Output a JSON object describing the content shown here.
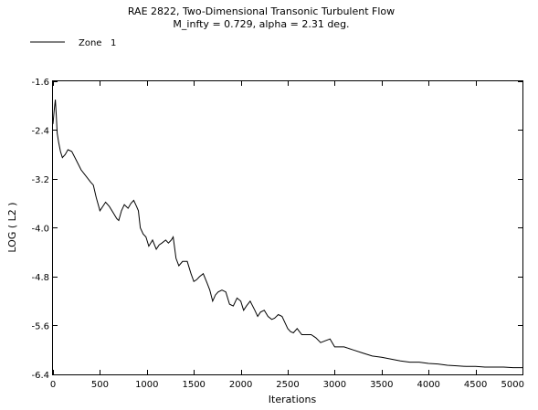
{
  "chart_data": {
    "type": "line",
    "title": "RAE 2822, Two-Dimensional Transonic Turbulent Flow",
    "subtitle": "M_infty = 0.729, alpha = 2.31 deg.",
    "xlabel": "Iterations",
    "ylabel": "LOG ( L2 )",
    "xlim": [
      0,
      5000
    ],
    "ylim": [
      -6.4,
      -1.6
    ],
    "x_ticks": [
      0,
      500,
      1000,
      1500,
      2000,
      2500,
      3000,
      3500,
      4000,
      4500,
      5000
    ],
    "x_tick_labels": [
      "0",
      "500",
      "1000",
      "1500",
      "2000",
      "2500",
      "3000",
      "3500",
      "4000",
      "4500",
      "5000"
    ],
    "y_ticks": [
      -1.6,
      -2.4,
      -3.2,
      -4.0,
      -4.8,
      -5.6,
      -6.4
    ],
    "y_tick_labels": [
      "-1.6",
      "-2.4",
      "-3.2",
      "-4.0",
      "-4.8",
      "-5.6",
      "-6.4"
    ],
    "grid": false,
    "legend_position": "top-left",
    "series": [
      {
        "name": "Zone   1",
        "color": "#000000",
        "x": [
          0,
          15,
          25,
          35,
          45,
          60,
          80,
          100,
          130,
          160,
          200,
          250,
          300,
          350,
          400,
          430,
          460,
          500,
          530,
          560,
          600,
          640,
          680,
          700,
          730,
          760,
          800,
          830,
          860,
          890,
          910,
          930,
          960,
          990,
          1020,
          1060,
          1100,
          1130,
          1160,
          1200,
          1230,
          1260,
          1280,
          1310,
          1340,
          1380,
          1430,
          1470,
          1500,
          1530,
          1560,
          1600,
          1640,
          1670,
          1700,
          1730,
          1760,
          1800,
          1840,
          1880,
          1920,
          1960,
          2000,
          2030,
          2060,
          2100,
          2150,
          2180,
          2210,
          2250,
          2290,
          2330,
          2360,
          2400,
          2440,
          2470,
          2500,
          2530,
          2560,
          2600,
          2650,
          2700,
          2750,
          2800,
          2850,
          2900,
          2950,
          3000,
          3100,
          3200,
          3300,
          3400,
          3500,
          3600,
          3700,
          3800,
          3900,
          4000,
          4100,
          4200,
          4300,
          4400,
          4500,
          4600,
          4700,
          4800,
          4900,
          5000
        ],
        "y": [
          -2.3,
          -2.05,
          -1.9,
          -2.15,
          -2.45,
          -2.6,
          -2.75,
          -2.85,
          -2.8,
          -2.72,
          -2.75,
          -2.9,
          -3.05,
          -3.15,
          -3.25,
          -3.3,
          -3.5,
          -3.72,
          -3.65,
          -3.58,
          -3.65,
          -3.75,
          -3.85,
          -3.88,
          -3.72,
          -3.62,
          -3.68,
          -3.6,
          -3.55,
          -3.65,
          -3.72,
          -4.0,
          -4.1,
          -4.15,
          -4.3,
          -4.2,
          -4.35,
          -4.28,
          -4.25,
          -4.2,
          -4.25,
          -4.2,
          -4.15,
          -4.5,
          -4.62,
          -4.55,
          -4.55,
          -4.75,
          -4.88,
          -4.85,
          -4.8,
          -4.75,
          -4.9,
          -5.02,
          -5.2,
          -5.1,
          -5.05,
          -5.02,
          -5.05,
          -5.25,
          -5.28,
          -5.15,
          -5.2,
          -5.35,
          -5.28,
          -5.2,
          -5.35,
          -5.45,
          -5.38,
          -5.35,
          -5.45,
          -5.5,
          -5.48,
          -5.42,
          -5.45,
          -5.55,
          -5.65,
          -5.7,
          -5.72,
          -5.65,
          -5.75,
          -5.75,
          -5.75,
          -5.8,
          -5.88,
          -5.85,
          -5.82,
          -5.95,
          -5.95,
          -6.0,
          -6.05,
          -6.1,
          -6.12,
          -6.15,
          -6.18,
          -6.2,
          -6.2,
          -6.22,
          -6.23,
          -6.25,
          -6.26,
          -6.27,
          -6.27,
          -6.28,
          -6.28,
          -6.28,
          -6.29,
          -6.29
        ]
      }
    ]
  }
}
